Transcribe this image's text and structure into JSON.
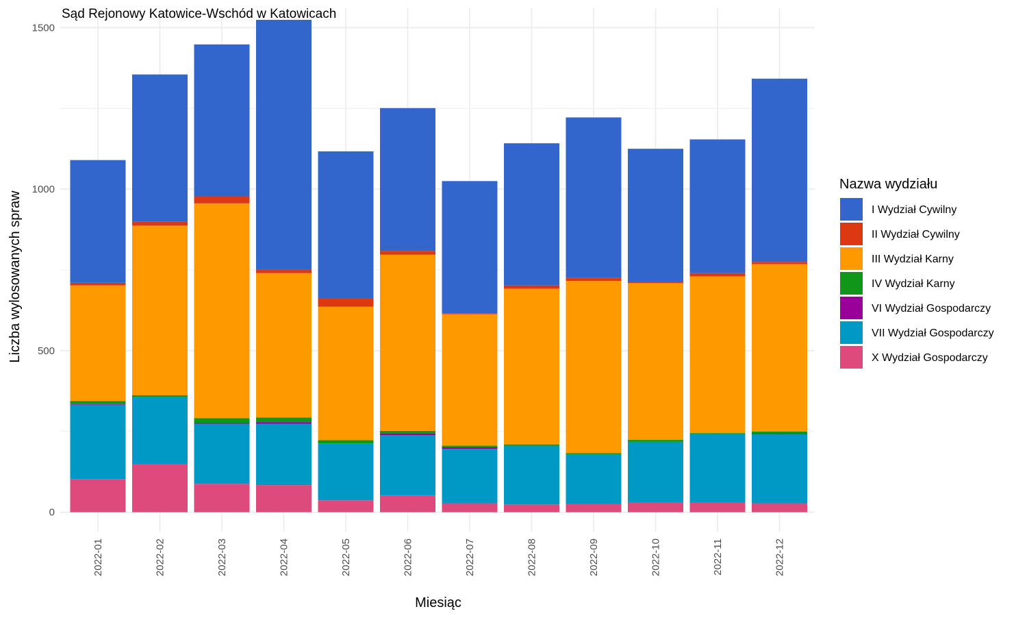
{
  "chart_data": {
    "type": "bar",
    "stacked": true,
    "title": "Sąd Rejonowy Katowice-Wschód w Katowicach",
    "xlabel": "Miesiąc",
    "ylabel": "Liczba wylosowanych spraw",
    "ylim": [
      -60,
      1560
    ],
    "yticks": [
      0,
      500,
      1000,
      1500
    ],
    "grid": true,
    "legend": {
      "title": "Nazwa wydziału",
      "placement": "right"
    },
    "categories": [
      "2022-01",
      "2022-02",
      "2022-03",
      "2022-04",
      "2022-05",
      "2022-06",
      "2022-07",
      "2022-08",
      "2022-09",
      "2022-10",
      "2022-11",
      "2022-12"
    ],
    "series": [
      {
        "name": "X Wydział Gospodarczy",
        "color": "#de4a7b",
        "values": [
          103,
          148,
          88,
          84,
          37,
          52,
          28,
          24,
          25,
          30,
          30,
          28
        ]
      },
      {
        "name": "VII Wydział Gospodarczy",
        "color": "#0099c6",
        "values": [
          230,
          208,
          186,
          190,
          176,
          187,
          168,
          182,
          153,
          188,
          212,
          213
        ]
      },
      {
        "name": "VI Wydział Gospodarczy",
        "color": "#990099",
        "values": [
          2,
          0,
          2,
          5,
          0,
          5,
          5,
          0,
          0,
          0,
          1,
          2
        ]
      },
      {
        "name": "IV Wydział Karny",
        "color": "#109618",
        "values": [
          9,
          6,
          15,
          14,
          10,
          8,
          5,
          4,
          5,
          6,
          2,
          7
        ]
      },
      {
        "name": "III Wydział Karny",
        "color": "#ff9900",
        "values": [
          358,
          525,
          665,
          447,
          413,
          545,
          407,
          482,
          533,
          485,
          485,
          518
        ]
      },
      {
        "name": "II Wydział Cywilny",
        "color": "#dc3912",
        "values": [
          8,
          12,
          22,
          12,
          25,
          12,
          3,
          10,
          10,
          5,
          10,
          7
        ]
      },
      {
        "name": "I Wydział Cywilny",
        "color": "#3366cc",
        "values": [
          380,
          456,
          470,
          772,
          456,
          442,
          409,
          440,
          496,
          411,
          414,
          567
        ]
      }
    ]
  }
}
